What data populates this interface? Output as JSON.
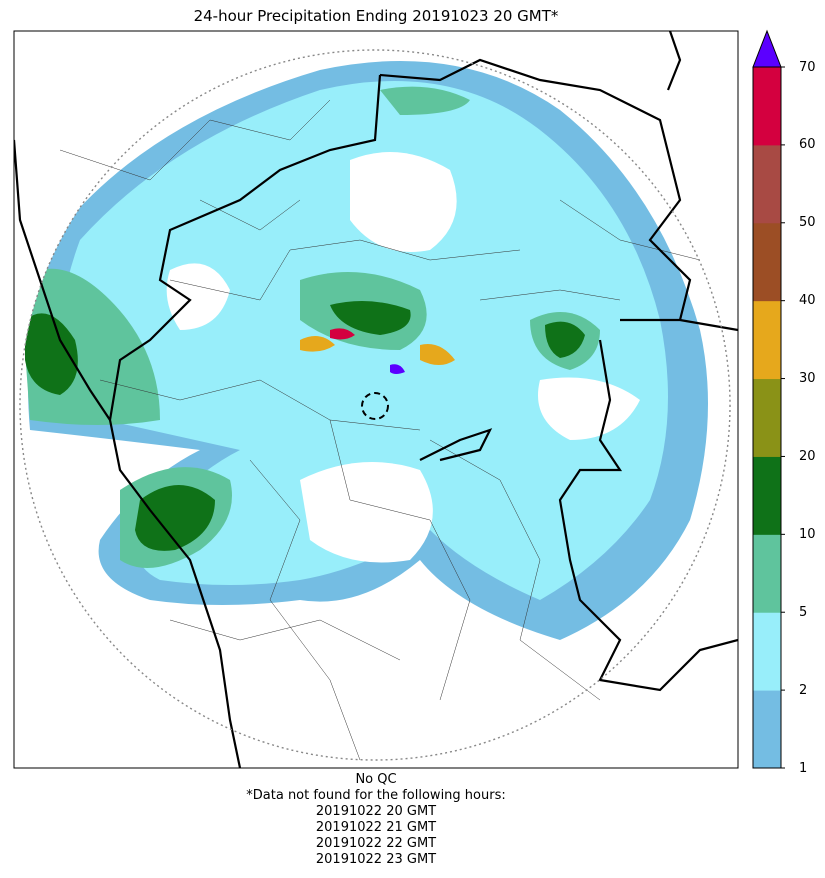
{
  "title": "24-hour Precipitation Ending 20191023 20 GMT*",
  "colorbar": {
    "unit": "",
    "extend": "max",
    "ticks": [
      "1",
      "2",
      "5",
      "10",
      "20",
      "30",
      "40",
      "50",
      "60",
      "70"
    ],
    "colors": [
      "#74bde3",
      "#98eefa",
      "#5fc49d",
      "#0f7218",
      "#8a9217",
      "#e6a81c",
      "#9c4e25",
      "#a84a44",
      "#d4003f"
    ],
    "overflow_color": "#5b00ff"
  },
  "footer": {
    "qc_note": "No QC",
    "missing_note": "*Data not found for the following hours:",
    "missing_hours": [
      "20191022 20 GMT",
      "20191022 21 GMT",
      "20191022 22 GMT",
      "20191022 23 GMT"
    ]
  }
}
